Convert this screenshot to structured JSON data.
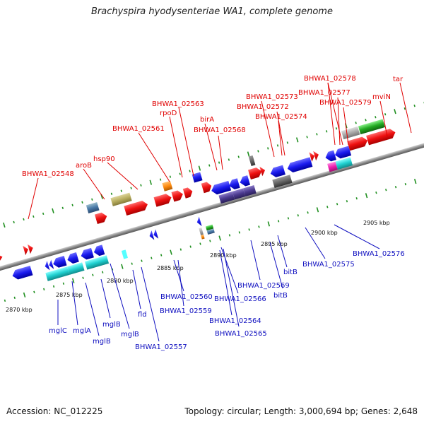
{
  "title": "Brachyspira hyodysenteriae WA1, complete genome",
  "footer": {
    "accession": "Accession: NC_012225",
    "stats": "Topology: circular; Length: 3,000,694 bp; Genes: 2,648"
  },
  "kbp_labels": [
    "2870 kbp",
    "2875 kbp",
    "2880 kbp",
    "2885 kbp",
    "2890 kbp",
    "2895 kbp",
    "2900 kbp",
    "2905 kbp"
  ],
  "top_labels": [
    "BHWA1_02548",
    "aroB",
    "hsp90",
    "BHWA1_02561",
    "rpoD",
    "BHWA1_02563",
    "birA",
    "BHWA1_02568",
    "BHWA1_02573",
    "BHWA1_02572",
    "BHWA1_02574",
    "BHWA1_02578",
    "BHWA1_02577",
    "BHWA1_02579",
    "mviN",
    "tar"
  ],
  "bottom_labels": [
    "mglC",
    "mglA",
    "mglB",
    "mglB",
    "mglB",
    "fld",
    "BHWA1_02557",
    "BHWA1_02560",
    "BHWA1_02559",
    "BHWA1_02566",
    "BHWA1_02564",
    "BHWA1_02565",
    "BHWA1_02569",
    "bitB",
    "bitB",
    "BHWA1_02575",
    "BHWA1_02576"
  ],
  "colors": {
    "forward_gene": "#ee1111",
    "reverse_gene": "#1a1aee",
    "top_label": "#e00000",
    "bottom_label": "#1010c0",
    "backbone": "#888888",
    "tick": "#1f8f1f"
  }
}
